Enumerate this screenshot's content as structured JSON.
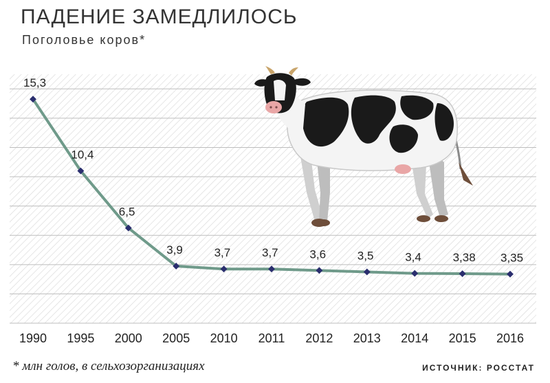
{
  "header": {
    "title": "ПАДЕНИЕ ЗАМЕДЛИЛОСЬ",
    "subtitle": "Поголовье коров*"
  },
  "footer": {
    "footnote": "* млн голов, в сельхозорганизациях",
    "source": "ИСТОЧНИК: РОССТАТ"
  },
  "colors": {
    "line": "#6f9a8a",
    "marker": "#2a2e6e",
    "hatch": "#d9d9d9",
    "gridline": "#bdbdbd",
    "cow_black": "#1a1a1a",
    "cow_white": "#f4f4f4"
  },
  "illustration": {
    "icon": "cow-icon"
  },
  "chart_data": {
    "type": "line",
    "categories": [
      "1990",
      "1995",
      "2000",
      "2005",
      "2010",
      "2011",
      "2012",
      "2013",
      "2014",
      "2015",
      "2016"
    ],
    "series": [
      {
        "values": [
          15.3,
          10.4,
          6.5,
          3.9,
          3.7,
          3.7,
          3.6,
          3.5,
          3.4,
          3.38,
          3.35
        ],
        "labels": [
          "15,3",
          "10,4",
          "6,5",
          "3,9",
          "3,7",
          "3,7",
          "3,6",
          "3,5",
          "3,4",
          "3,38",
          "3,35"
        ]
      }
    ],
    "title": "ПАДЕНИЕ ЗАМЕДЛИЛОСЬ",
    "subtitle": "Поголовье коров*",
    "xlabel": "",
    "ylabel": "",
    "ylim": [
      0,
      17
    ],
    "grid": true,
    "legend": "none"
  }
}
